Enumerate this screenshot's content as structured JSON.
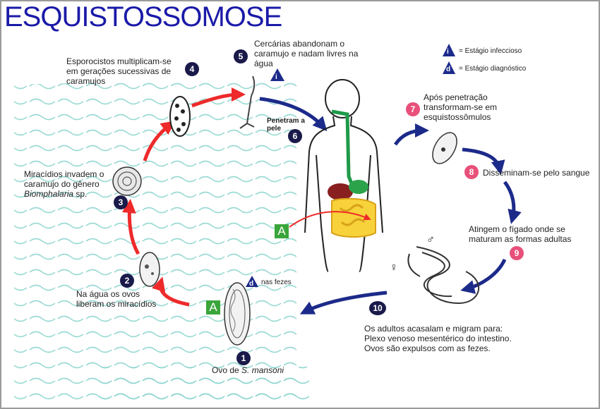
{
  "title": "ESQUISTOSSOMOSE",
  "legend": {
    "infective_symbol": "i",
    "infective_label": "= Estágio infeccioso",
    "diagnostic_symbol": "d",
    "diagnostic_label": "= Estágio diagnóstico"
  },
  "steps": [
    {
      "number": "1",
      "line1": "Ovo de ",
      "italic": "S. mansoni"
    },
    {
      "number": "2",
      "lines": [
        "Na água os ovos",
        "liberam os miracídios"
      ]
    },
    {
      "number": "3",
      "lines": [
        "Miracídios invadem o",
        "caramujo do gênero"
      ],
      "italic": "Biomphalaria",
      "suffix": " sp."
    },
    {
      "number": "4",
      "lines": [
        "Esporocistos multiplicam-se",
        "em gerações sucessivas de",
        "caramujos"
      ]
    },
    {
      "number": "5",
      "lines": [
        "Cercárias abandonam o",
        "caramujo e nadam livres na",
        "água"
      ]
    },
    {
      "number": "6",
      "lines": [
        "Penetram a",
        "pele"
      ]
    },
    {
      "number": "7",
      "lines": [
        "Após penetração",
        "transformam-se em",
        "esquistossômulos"
      ]
    },
    {
      "number": "8",
      "lines": [
        "Disseminam-se pelo sangue"
      ]
    },
    {
      "number": "9",
      "lines": [
        "Atingem o fígado onde se",
        "maturam as formas adultas"
      ]
    },
    {
      "number": "10",
      "lines": [
        "Os adultos acasalam e migram para:",
        "Plexo venoso mesentérico do intestino.",
        "Ovos são expulsos com as fezes."
      ]
    }
  ],
  "feces_label": "nas fezes",
  "marker_A": "A",
  "sex_symbols": {
    "female": "♀",
    "male": "♂"
  },
  "colors": {
    "title": "#1a1aa8",
    "dark_badge": "#1a1a4a",
    "pink_badge": "#e8507a",
    "red_arrow": "#ee2a2a",
    "blue_arrow": "#1c2a8a",
    "water": "#8fd6cf",
    "green_box": "#3aa53a"
  }
}
